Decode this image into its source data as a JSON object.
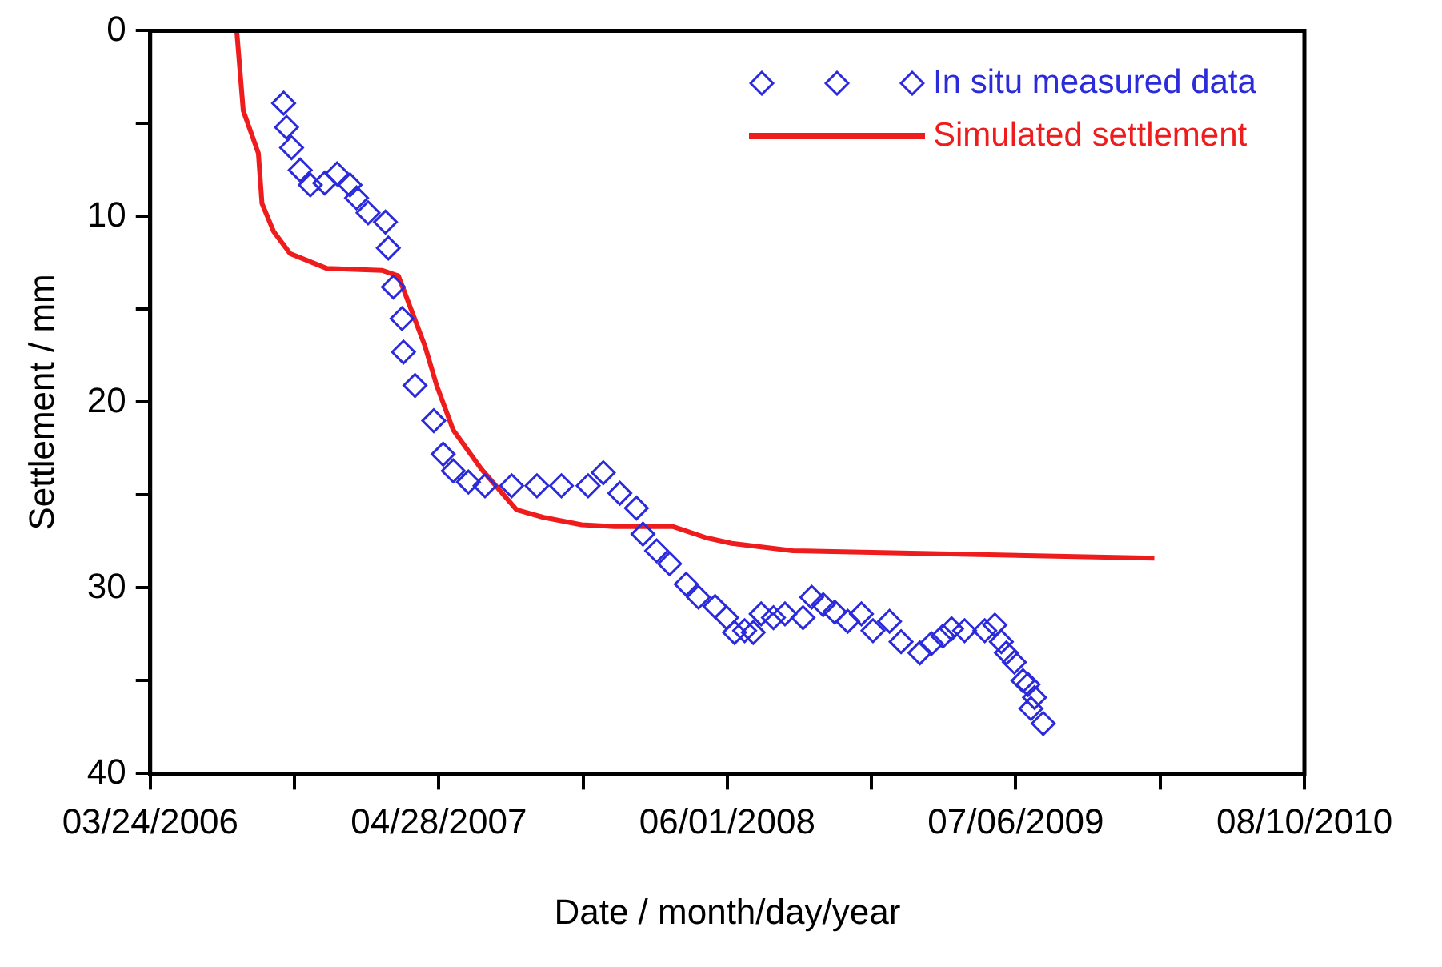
{
  "chart_data": {
    "type": "scatter",
    "xlabel": "Date / month/day/year",
    "ylabel": "Settlement / mm",
    "xlim": [
      "2006-03-24",
      "2010-08-10"
    ],
    "xticks": [
      {
        "value": "2006-03-24",
        "label": "03/24/2006"
      },
      {
        "value": "2006-10-10",
        "label": null
      },
      {
        "value": "2007-04-28",
        "label": "04/28/2007"
      },
      {
        "value": "2007-11-14",
        "label": null
      },
      {
        "value": "2008-06-01",
        "label": "06/01/2008"
      },
      {
        "value": "2008-12-18",
        "label": null
      },
      {
        "value": "2009-07-06",
        "label": "07/06/2009"
      },
      {
        "value": "2010-01-22",
        "label": null
      },
      {
        "value": "2010-08-10",
        "label": "08/10/2010"
      }
    ],
    "ylim": [
      40,
      0
    ],
    "yticks": [
      0,
      {
        "value": 5,
        "label": null
      },
      10,
      {
        "value": 15,
        "label": null
      },
      20,
      {
        "value": 25,
        "label": null
      },
      30,
      {
        "value": 35,
        "label": null
      },
      40
    ],
    "grid": false,
    "legend": "top right",
    "series": [
      {
        "name": "In situ measured data",
        "type": "scatter",
        "marker": "diamond",
        "color": "#2b2bdc",
        "x": [
          "2006-09-25",
          "2006-09-29",
          "2006-10-06",
          "2006-10-18",
          "2006-11-01",
          "2006-11-21",
          "2006-12-08",
          "2006-12-26",
          "2007-01-04",
          "2007-01-20",
          "2007-02-13",
          "2007-02-17",
          "2007-02-24",
          "2007-03-08",
          "2007-03-10",
          "2007-03-26",
          "2007-04-21",
          "2007-05-04",
          "2007-05-18",
          "2007-06-08",
          "2007-07-01",
          "2007-08-07",
          "2007-09-11",
          "2007-10-15",
          "2007-11-21",
          "2007-12-12",
          "2008-01-04",
          "2008-01-27",
          "2008-02-05",
          "2008-02-24",
          "2008-03-13",
          "2008-04-05",
          "2008-04-22",
          "2008-05-15",
          "2008-05-31",
          "2008-06-11",
          "2008-06-25",
          "2008-07-07",
          "2008-07-18",
          "2008-08-04",
          "2008-08-20",
          "2008-09-14",
          "2008-09-26",
          "2008-10-12",
          "2008-10-28",
          "2008-11-15",
          "2008-12-04",
          "2008-12-20",
          "2009-01-12",
          "2009-01-28",
          "2009-02-23",
          "2009-03-11",
          "2009-03-27",
          "2009-04-08",
          "2009-04-26",
          "2009-05-24",
          "2009-06-07",
          "2009-06-16",
          "2009-06-23",
          "2009-07-04",
          "2009-07-16",
          "2009-07-23",
          "2009-07-27",
          "2009-08-01",
          "2009-08-13"
        ],
        "values": [
          3.9,
          5.2,
          6.3,
          7.5,
          8.3,
          8.2,
          7.7,
          8.3,
          9.0,
          9.8,
          10.3,
          11.7,
          13.8,
          15.5,
          17.3,
          19.1,
          21.0,
          22.8,
          23.7,
          24.3,
          24.5,
          24.5,
          24.5,
          24.5,
          24.5,
          23.8,
          24.9,
          25.7,
          27.1,
          28.0,
          28.7,
          29.8,
          30.5,
          31.0,
          31.6,
          32.4,
          32.3,
          32.4,
          31.4,
          31.6,
          31.4,
          31.6,
          30.5,
          30.9,
          31.3,
          31.8,
          31.4,
          32.3,
          31.8,
          32.9,
          33.5,
          33.0,
          32.6,
          32.2,
          32.3,
          32.3,
          32.0,
          32.9,
          33.5,
          34.0,
          35.0,
          35.2,
          36.5,
          35.9,
          37.3
        ]
      },
      {
        "name": "Simulated settlement",
        "type": "line",
        "marker": "none",
        "line_style": "solid",
        "color": "#ee1c1c",
        "x": [
          "2006-07-22",
          "2006-07-31",
          "2006-08-21",
          "2006-08-26",
          "2006-09-11",
          "2006-10-04",
          "2006-11-24",
          "2007-02-08",
          "2007-03-03",
          "2007-04-09",
          "2007-04-25",
          "2007-05-18",
          "2007-06-26",
          "2007-08-14",
          "2007-09-20",
          "2007-11-12",
          "2007-12-28",
          "2008-03-18",
          "2008-05-03",
          "2008-06-07",
          "2008-08-31",
          "2009-01-01",
          "2010-01-14"
        ],
        "values": [
          0,
          4.3,
          6.6,
          9.3,
          10.8,
          12.0,
          12.8,
          12.9,
          13.2,
          17.0,
          19.1,
          21.5,
          23.6,
          25.8,
          26.2,
          26.6,
          26.7,
          26.7,
          27.3,
          27.6,
          28.0,
          28.1,
          28.4
        ]
      }
    ]
  }
}
